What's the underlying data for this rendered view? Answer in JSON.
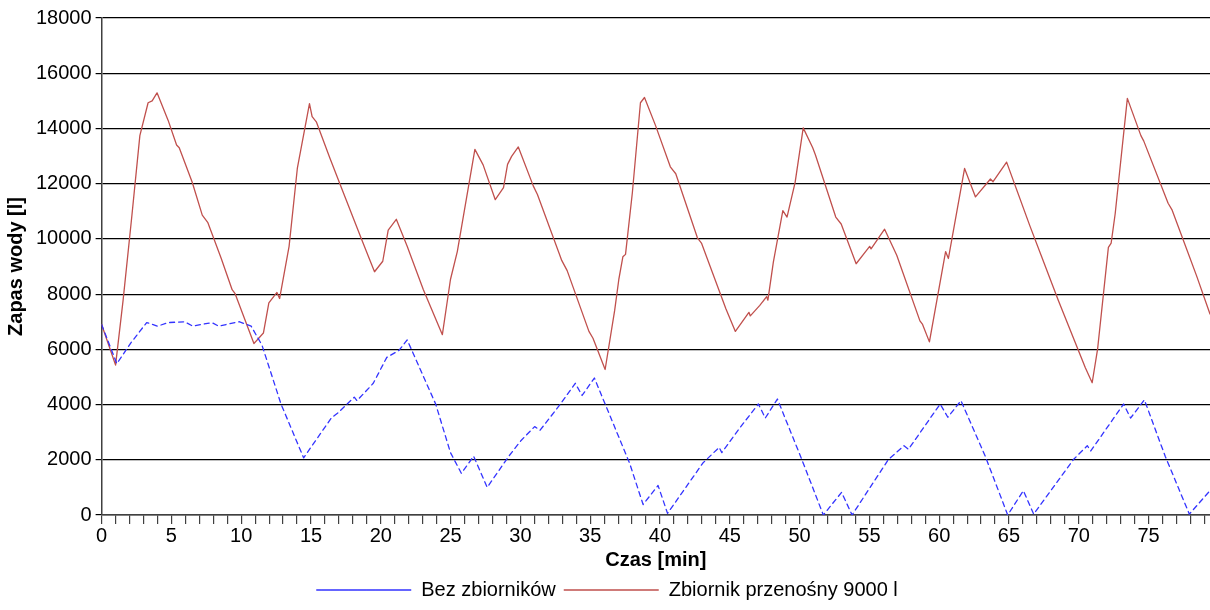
{
  "chart_data": {
    "type": "line",
    "xlabel": "Czas [min]",
    "ylabel": "Zapas wody [l]",
    "xlim": [
      0,
      79.4
    ],
    "xticks": [
      0,
      {
        "value": 1,
        "label": null
      },
      {
        "value": 2,
        "label": null
      },
      {
        "value": 3,
        "label": null
      },
      {
        "value": 4,
        "label": null
      },
      5,
      {
        "value": 6,
        "label": null
      },
      {
        "value": 7,
        "label": null
      },
      {
        "value": 8,
        "label": null
      },
      {
        "value": 9,
        "label": null
      },
      10,
      {
        "value": 11,
        "label": null
      },
      {
        "value": 12,
        "label": null
      },
      {
        "value": 13,
        "label": null
      },
      {
        "value": 14,
        "label": null
      },
      15,
      {
        "value": 16,
        "label": null
      },
      {
        "value": 17,
        "label": null
      },
      {
        "value": 18,
        "label": null
      },
      {
        "value": 19,
        "label": null
      },
      20,
      {
        "value": 21,
        "label": null
      },
      {
        "value": 22,
        "label": null
      },
      {
        "value": 23,
        "label": null
      },
      {
        "value": 24,
        "label": null
      },
      25,
      {
        "value": 26,
        "label": null
      },
      {
        "value": 27,
        "label": null
      },
      {
        "value": 28,
        "label": null
      },
      {
        "value": 29,
        "label": null
      },
      30,
      {
        "value": 31,
        "label": null
      },
      {
        "value": 32,
        "label": null
      },
      {
        "value": 33,
        "label": null
      },
      {
        "value": 34,
        "label": null
      },
      35,
      {
        "value": 36,
        "label": null
      },
      {
        "value": 37,
        "label": null
      },
      {
        "value": 38,
        "label": null
      },
      {
        "value": 39,
        "label": null
      },
      40,
      {
        "value": 41,
        "label": null
      },
      {
        "value": 42,
        "label": null
      },
      {
        "value": 43,
        "label": null
      },
      {
        "value": 44,
        "label": null
      },
      45,
      {
        "value": 46,
        "label": null
      },
      {
        "value": 47,
        "label": null
      },
      {
        "value": 48,
        "label": null
      },
      {
        "value": 49,
        "label": null
      },
      50,
      {
        "value": 51,
        "label": null
      },
      {
        "value": 52,
        "label": null
      },
      {
        "value": 53,
        "label": null
      },
      {
        "value": 54,
        "label": null
      },
      55,
      {
        "value": 56,
        "label": null
      },
      {
        "value": 57,
        "label": null
      },
      {
        "value": 58,
        "label": null
      },
      {
        "value": 59,
        "label": null
      },
      60,
      {
        "value": 61,
        "label": null
      },
      {
        "value": 62,
        "label": null
      },
      {
        "value": 63,
        "label": null
      },
      {
        "value": 64,
        "label": null
      },
      65,
      {
        "value": 66,
        "label": null
      },
      {
        "value": 67,
        "label": null
      },
      {
        "value": 68,
        "label": null
      },
      {
        "value": 69,
        "label": null
      },
      70,
      {
        "value": 71,
        "label": null
      },
      {
        "value": 72,
        "label": null
      },
      {
        "value": 73,
        "label": null
      },
      {
        "value": 74,
        "label": null
      },
      75,
      {
        "value": 76,
        "label": null
      },
      {
        "value": 77,
        "label": null
      },
      {
        "value": 78,
        "label": null
      },
      {
        "value": 79,
        "label": null
      }
    ],
    "ylim": [
      0,
      18000
    ],
    "yticks": [
      0,
      2000,
      4000,
      6000,
      8000,
      10000,
      12000,
      14000,
      16000,
      18000
    ],
    "grid": "y",
    "legend": "bottom",
    "marker": "none",
    "series": [
      {
        "name": "Bez zbiorników",
        "color": "#3333ff",
        "line_style": "dashed",
        "x": [
          0,
          1.09,
          2.06,
          3.23,
          4.01,
          4.78,
          5.95,
          6.53,
          7.89,
          8.38,
          9.84,
          10.71,
          11.49,
          12.85,
          14.47,
          16.45,
          16.93,
          18.1,
          18.29,
          19.46,
          20.43,
          21.3,
          21.89,
          23.93,
          24.99,
          25.77,
          26.65,
          27.62,
          29.17,
          30.05,
          31.02,
          31.41,
          32.87,
          33.93,
          34.42,
          35.3,
          37.82,
          38.79,
          39.86,
          40.54,
          43.07,
          44.24,
          44.43,
          45.69,
          47.05,
          47.54,
          48.41,
          50.16,
          51.7,
          53.01,
          53.76,
          56.36,
          57.48,
          57.8,
          60.07,
          60.62,
          61.56,
          63.3,
          64.91,
          66.03,
          66.77,
          69.62,
          70.61,
          70.86,
          73.21,
          73.71,
          74.7,
          76.19,
          77.92,
          79.4
        ],
        "values": [
          6900,
          5480,
          6210,
          6970,
          6840,
          6970,
          7000,
          6840,
          6970,
          6840,
          7000,
          6840,
          6150,
          4020,
          2070,
          3510,
          3700,
          4270,
          4140,
          4770,
          5710,
          5960,
          6340,
          4020,
          2260,
          1510,
          2130,
          1000,
          2130,
          2700,
          3200,
          3070,
          4020,
          4770,
          4330,
          4960,
          1880,
          380,
          1070,
          60,
          1880,
          2450,
          2260,
          3140,
          4020,
          3510,
          4200,
          2010,
          0,
          820,
          0,
          2010,
          2510,
          2380,
          4020,
          3540,
          4140,
          2130,
          0,
          880,
          30,
          2010,
          2510,
          2320,
          4020,
          3510,
          4170,
          2130,
          30,
          880
        ]
      },
      {
        "name": "Zbiornik przenośny 9000 l",
        "color": "#c0504d",
        "line_style": "solid",
        "x": [
          0,
          1.0,
          1.54,
          2.16,
          2.74,
          3.33,
          3.62,
          3.97,
          4.76,
          5.37,
          5.56,
          6.49,
          7.21,
          7.6,
          8.57,
          9.35,
          9.55,
          10.91,
          11.59,
          11.98,
          12.56,
          12.75,
          13.43,
          14.02,
          14.89,
          15.08,
          15.38,
          16.35,
          17.22,
          18.58,
          19.17,
          19.55,
          20.14,
          20.53,
          21.11,
          21.89,
          23.05,
          24.41,
          24.99,
          25.48,
          26.74,
          27.33,
          28.2,
          28.79,
          29.08,
          29.37,
          29.85,
          30.92,
          31.22,
          32.96,
          33.35,
          34.91,
          35.2,
          36.07,
          36.75,
          37.05,
          37.34,
          37.53,
          38.02,
          38.6,
          38.89,
          39.67,
          40.74,
          41.13,
          42.68,
          42.97,
          44.72,
          45.4,
          46.37,
          46.47,
          47.15,
          47.64,
          47.73,
          48.12,
          48.8,
          49.1,
          49.68,
          50.26,
          50.94,
          51.13,
          52.59,
          52.98,
          54.05,
          55.02,
          55.12,
          56.09,
          56.96,
          58.62,
          58.81,
          59.3,
          60.46,
          60.66,
          61.82,
          62.6,
          63.67,
          63.86,
          64.83,
          66.49,
          68.53,
          70.47,
          70.96,
          71.35,
          72.12,
          72.32,
          72.61,
          73.48,
          74.45,
          74.65,
          76.4,
          76.69,
          78.44,
          79.4
        ],
        "values": [
          6900,
          5430,
          7780,
          10800,
          13740,
          14930,
          15000,
          15290,
          14300,
          13400,
          13300,
          12050,
          10860,
          10600,
          9290,
          8160,
          8030,
          6210,
          6590,
          7680,
          8060,
          7840,
          9730,
          12550,
          14900,
          14430,
          14240,
          12930,
          11800,
          10040,
          9290,
          8810,
          9190,
          10320,
          10710,
          9730,
          8160,
          6530,
          8530,
          9540,
          13240,
          12680,
          11420,
          11860,
          12700,
          12990,
          13330,
          11920,
          11610,
          9220,
          8850,
          6650,
          6400,
          5270,
          7400,
          8530,
          9350,
          9440,
          11670,
          14930,
          15120,
          14120,
          12610,
          12360,
          10040,
          9850,
          7470,
          6650,
          7340,
          7210,
          7590,
          7910,
          7780,
          9160,
          11020,
          10790,
          12050,
          14020,
          13300,
          13050,
          10790,
          10540,
          9100,
          9730,
          9640,
          10350,
          9410,
          7030,
          6900,
          6270,
          9540,
          9290,
          12550,
          11520,
          12170,
          12070,
          12780,
          10480,
          7780,
          5330,
          4790,
          6020,
          9690,
          9850,
          10920,
          15090,
          13740,
          13550,
          11290,
          11040,
          8660,
          7280
        ]
      }
    ]
  }
}
